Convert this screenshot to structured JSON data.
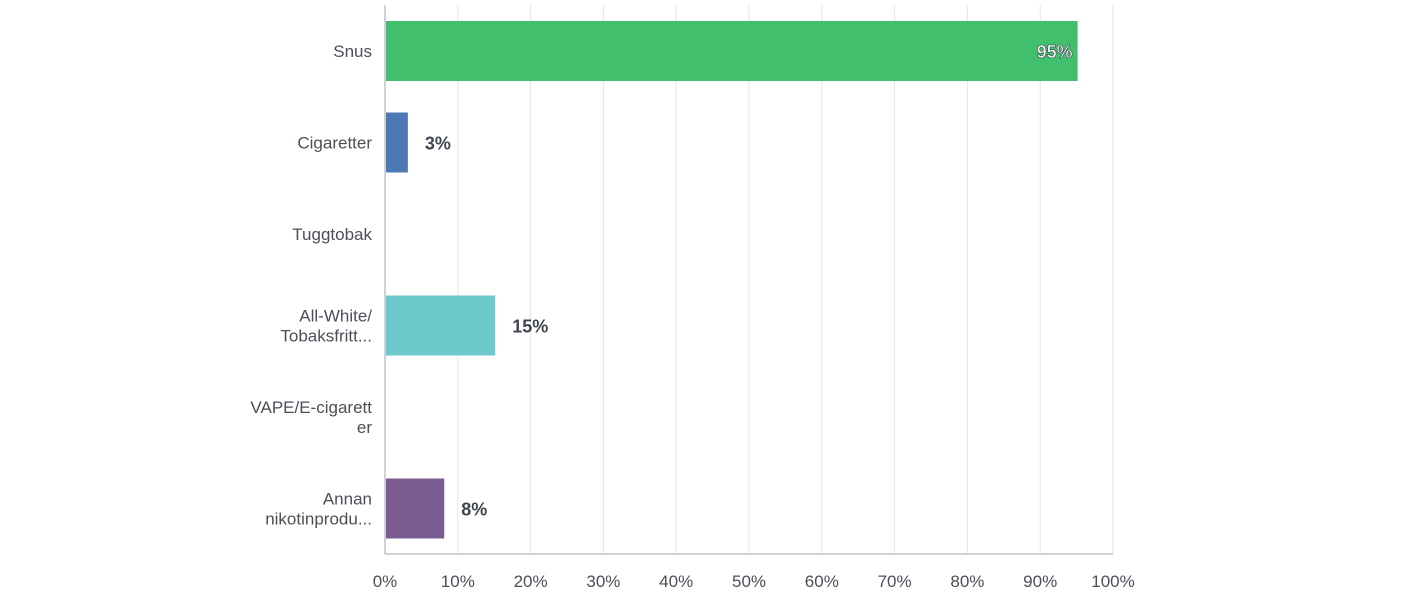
{
  "chart_data": {
    "type": "bar",
    "orientation": "horizontal",
    "categories": [
      [
        "Snus"
      ],
      [
        "Cigaretter"
      ],
      [
        "Tuggtobak"
      ],
      [
        "All-White/",
        "Tobaksfritt..."
      ],
      [
        "VAPE/E-cigarett",
        "er"
      ],
      [
        "Annan",
        "nikotinprodu..."
      ]
    ],
    "values": [
      95,
      3,
      0,
      15,
      0,
      8
    ],
    "data_labels": [
      "95%",
      "3%",
      "",
      "15%",
      "",
      "8%"
    ],
    "colors": [
      "#42bf6d",
      "#4c78b3",
      "#e0e0e0",
      "#6ec9cd",
      "#e0e0e0",
      "#7b5c92"
    ],
    "xlim": [
      0,
      100
    ],
    "x_ticks": [
      0,
      10,
      20,
      30,
      40,
      50,
      60,
      70,
      80,
      90,
      100
    ],
    "x_tick_labels": [
      "0%",
      "10%",
      "20%",
      "30%",
      "40%",
      "50%",
      "60%",
      "70%",
      "80%",
      "90%",
      "100%"
    ],
    "grid": true,
    "legend": "none",
    "title": "",
    "xlabel": "",
    "ylabel": ""
  }
}
